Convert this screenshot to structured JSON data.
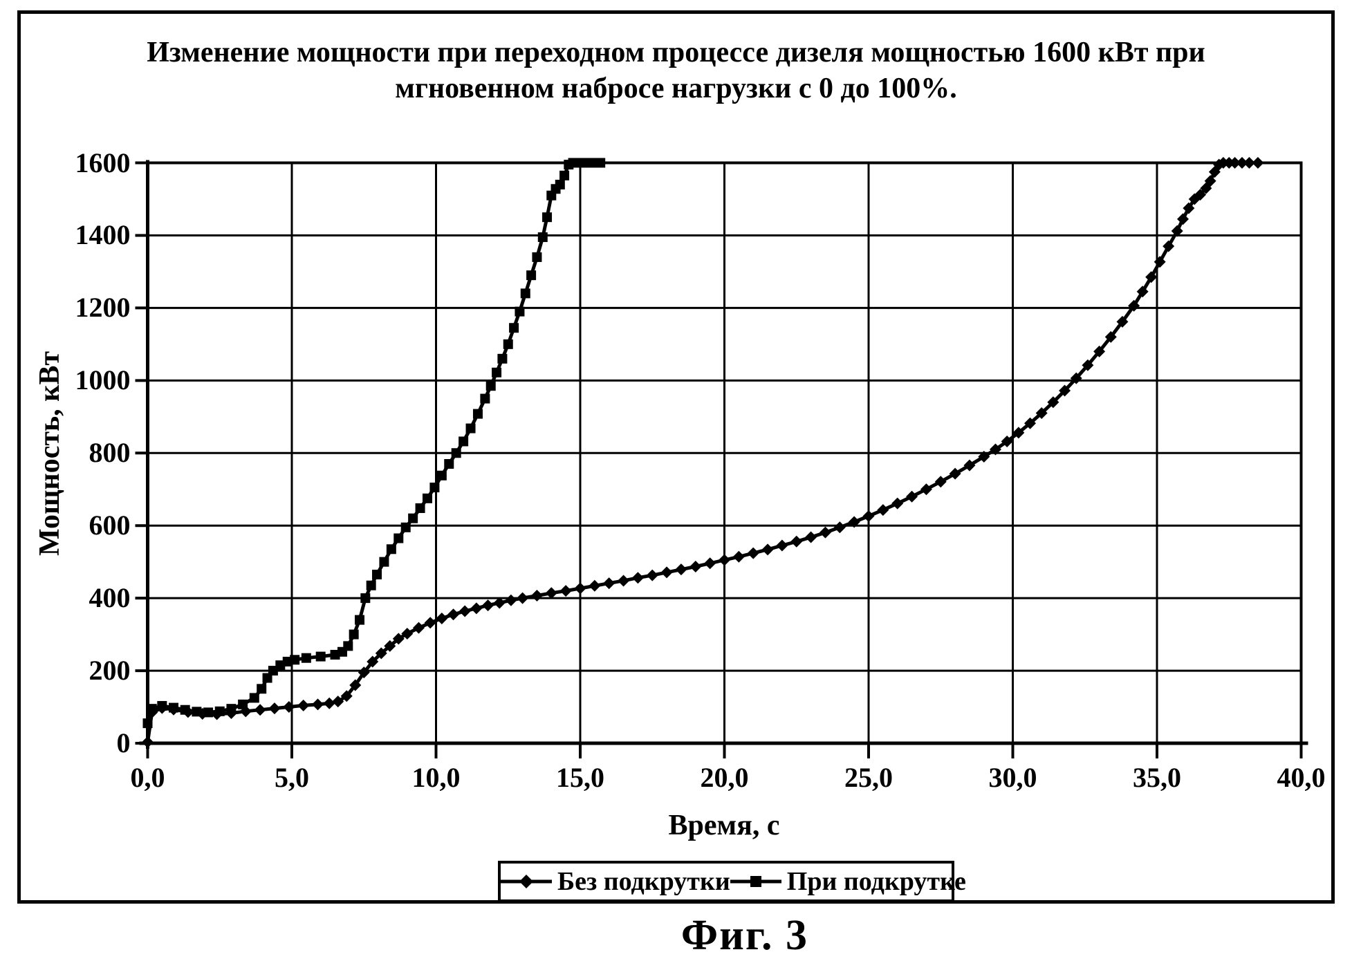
{
  "figure": {
    "title_line1": "Изменение мощности при переходном процессе дизеля мощностью 1600 кВт при",
    "title_line2": "мгновенном набросе нагрузки с 0 до 100%.",
    "caption": "Фиг. 3",
    "background_color": "#ffffff",
    "ink_color": "#000000"
  },
  "chart_data": {
    "type": "line",
    "title": "Изменение мощности при переходном процессе дизеля мощностью 1600 кВт при мгновенном набросе нагрузки с 0 до 100%.",
    "xlabel": "Время, с",
    "ylabel": "Мощность, кВт",
    "xlim": [
      0,
      40
    ],
    "ylim": [
      0,
      1600
    ],
    "x_tick_values": [
      0,
      5,
      10,
      15,
      20,
      25,
      30,
      35,
      40
    ],
    "x_tick_labels": [
      "0,0",
      "5,0",
      "10,0",
      "15,0",
      "20,0",
      "25,0",
      "30,0",
      "35,0",
      "40,0"
    ],
    "y_tick_values": [
      0,
      200,
      400,
      600,
      800,
      1000,
      1200,
      1400,
      1600
    ],
    "grid": true,
    "legend_position": "bottom",
    "series": [
      {
        "name": "Без подкрутки",
        "marker": "diamond",
        "color": "#000000",
        "points": [
          [
            0,
            3
          ],
          [
            0.15,
            85
          ],
          [
            0.5,
            97
          ],
          [
            0.9,
            93
          ],
          [
            1.4,
            86
          ],
          [
            1.9,
            81
          ],
          [
            2.4,
            80
          ],
          [
            2.9,
            83
          ],
          [
            3.4,
            88
          ],
          [
            3.9,
            92
          ],
          [
            4.4,
            96
          ],
          [
            4.9,
            100
          ],
          [
            5.4,
            104
          ],
          [
            5.9,
            107
          ],
          [
            6.3,
            110
          ],
          [
            6.6,
            115
          ],
          [
            6.9,
            130
          ],
          [
            7.2,
            160
          ],
          [
            7.5,
            195
          ],
          [
            7.8,
            225
          ],
          [
            8.1,
            248
          ],
          [
            8.4,
            268
          ],
          [
            8.7,
            288
          ],
          [
            9.0,
            302
          ],
          [
            9.4,
            318
          ],
          [
            9.8,
            332
          ],
          [
            10.2,
            344
          ],
          [
            10.6,
            355
          ],
          [
            11.0,
            364
          ],
          [
            11.4,
            372
          ],
          [
            11.8,
            380
          ],
          [
            12.2,
            387
          ],
          [
            12.6,
            394
          ],
          [
            13.0,
            400
          ],
          [
            13.5,
            407
          ],
          [
            14.0,
            414
          ],
          [
            14.5,
            420
          ],
          [
            15.0,
            427
          ],
          [
            15.5,
            434
          ],
          [
            16.0,
            441
          ],
          [
            16.5,
            448
          ],
          [
            17.0,
            456
          ],
          [
            17.5,
            463
          ],
          [
            18.0,
            471
          ],
          [
            18.5,
            479
          ],
          [
            19.0,
            487
          ],
          [
            19.5,
            496
          ],
          [
            20.0,
            505
          ],
          [
            20.5,
            514
          ],
          [
            21.0,
            524
          ],
          [
            21.5,
            534
          ],
          [
            22.0,
            545
          ],
          [
            22.5,
            556
          ],
          [
            23.0,
            568
          ],
          [
            23.5,
            581
          ],
          [
            24.0,
            595
          ],
          [
            24.5,
            610
          ],
          [
            25.0,
            626
          ],
          [
            25.5,
            643
          ],
          [
            26.0,
            661
          ],
          [
            26.5,
            680
          ],
          [
            27.0,
            700
          ],
          [
            27.5,
            721
          ],
          [
            28.0,
            743
          ],
          [
            28.5,
            766
          ],
          [
            29.0,
            790
          ],
          [
            29.4,
            810
          ],
          [
            29.8,
            832
          ],
          [
            30.2,
            856
          ],
          [
            30.6,
            882
          ],
          [
            31.0,
            910
          ],
          [
            31.4,
            940
          ],
          [
            31.8,
            972
          ],
          [
            32.2,
            1006
          ],
          [
            32.6,
            1042
          ],
          [
            33.0,
            1080
          ],
          [
            33.4,
            1120
          ],
          [
            33.8,
            1162
          ],
          [
            34.2,
            1206
          ],
          [
            34.5,
            1245
          ],
          [
            34.8,
            1285
          ],
          [
            35.1,
            1327
          ],
          [
            35.4,
            1370
          ],
          [
            35.7,
            1412
          ],
          [
            35.9,
            1445
          ],
          [
            36.1,
            1475
          ],
          [
            36.3,
            1500
          ],
          [
            36.5,
            1512
          ],
          [
            36.7,
            1530
          ],
          [
            36.85,
            1550
          ],
          [
            37.0,
            1575
          ],
          [
            37.15,
            1595
          ],
          [
            37.3,
            1600
          ],
          [
            37.5,
            1600
          ],
          [
            37.7,
            1600
          ],
          [
            37.95,
            1600
          ],
          [
            38.2,
            1600
          ],
          [
            38.5,
            1600
          ]
        ]
      },
      {
        "name": "При подкрутке",
        "marker": "square",
        "color": "#000000",
        "points": [
          [
            0,
            55
          ],
          [
            0.15,
            95
          ],
          [
            0.5,
            103
          ],
          [
            0.9,
            98
          ],
          [
            1.3,
            92
          ],
          [
            1.7,
            87
          ],
          [
            2.1,
            85
          ],
          [
            2.5,
            88
          ],
          [
            2.9,
            95
          ],
          [
            3.3,
            107
          ],
          [
            3.7,
            125
          ],
          [
            3.95,
            150
          ],
          [
            4.15,
            180
          ],
          [
            4.35,
            200
          ],
          [
            4.6,
            215
          ],
          [
            4.85,
            225
          ],
          [
            5.1,
            230
          ],
          [
            5.5,
            235
          ],
          [
            6.0,
            239
          ],
          [
            6.5,
            244
          ],
          [
            6.75,
            252
          ],
          [
            6.95,
            268
          ],
          [
            7.15,
            300
          ],
          [
            7.35,
            340
          ],
          [
            7.55,
            400
          ],
          [
            7.75,
            435
          ],
          [
            7.95,
            465
          ],
          [
            8.2,
            500
          ],
          [
            8.45,
            535
          ],
          [
            8.7,
            565
          ],
          [
            8.95,
            595
          ],
          [
            9.2,
            620
          ],
          [
            9.45,
            648
          ],
          [
            9.7,
            675
          ],
          [
            9.95,
            705
          ],
          [
            10.2,
            738
          ],
          [
            10.45,
            770
          ],
          [
            10.7,
            800
          ],
          [
            10.95,
            832
          ],
          [
            11.2,
            868
          ],
          [
            11.45,
            908
          ],
          [
            11.7,
            950
          ],
          [
            11.9,
            985
          ],
          [
            12.1,
            1022
          ],
          [
            12.3,
            1060
          ],
          [
            12.5,
            1100
          ],
          [
            12.7,
            1145
          ],
          [
            12.9,
            1190
          ],
          [
            13.1,
            1240
          ],
          [
            13.3,
            1290
          ],
          [
            13.5,
            1340
          ],
          [
            13.7,
            1395
          ],
          [
            13.85,
            1450
          ],
          [
            14.0,
            1510
          ],
          [
            14.15,
            1528
          ],
          [
            14.3,
            1540
          ],
          [
            14.45,
            1565
          ],
          [
            14.6,
            1595
          ],
          [
            14.75,
            1600
          ],
          [
            14.9,
            1600
          ],
          [
            15.05,
            1600
          ],
          [
            15.2,
            1600
          ],
          [
            15.35,
            1600
          ],
          [
            15.5,
            1600
          ],
          [
            15.7,
            1600
          ]
        ]
      }
    ]
  }
}
